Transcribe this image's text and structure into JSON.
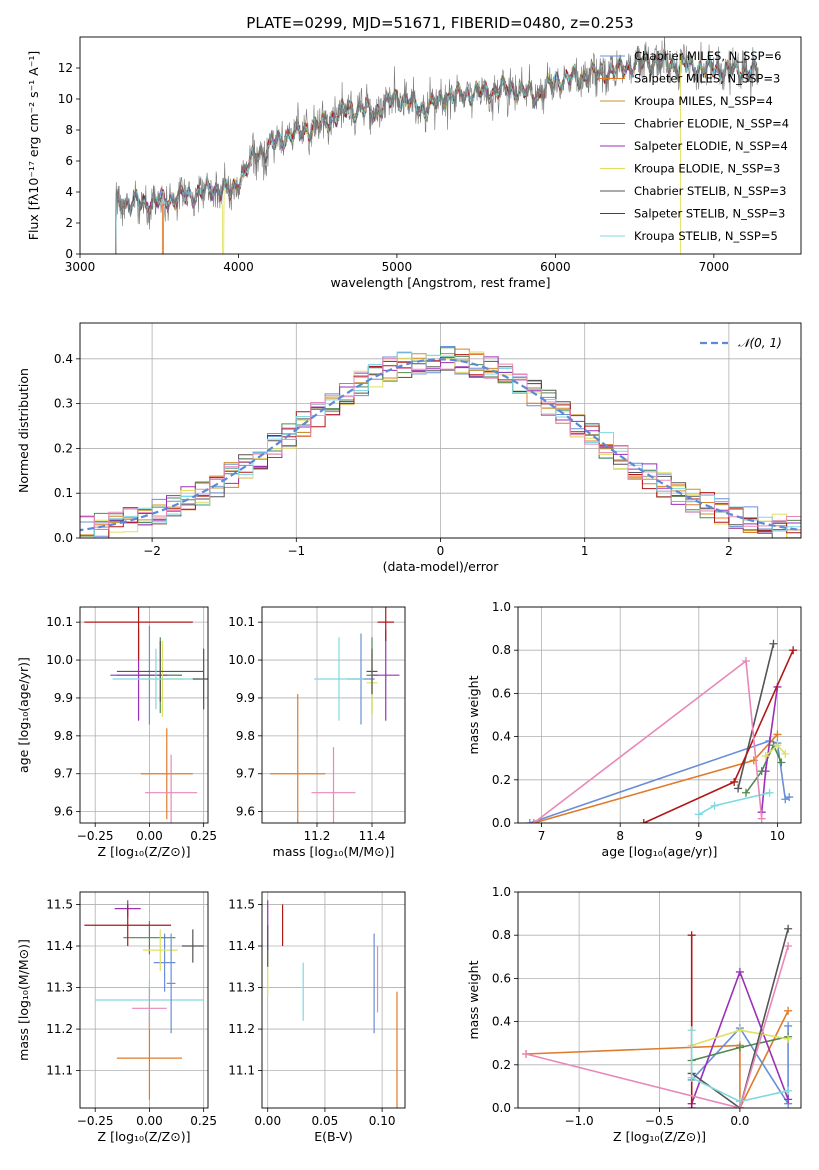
{
  "figure_title": "PLATE=0299, MJD=51671, FIBERID=0480, z=0.253",
  "colors": {
    "series": [
      "#6a8fd8",
      "#e07b2a",
      "#c9902f",
      "#4f8a4f",
      "#9b30b8",
      "#e0e060",
      "#555555",
      "#b01818",
      "#80d8e0"
    ],
    "extra_pink": "#e888b8",
    "data_gray": "#777777",
    "gaussian": "#5a8ad8",
    "grid": "#b0b0b0"
  },
  "chart_data": [
    {
      "id": "spectrum",
      "type": "line",
      "xlabel": "wavelength [Angstrom, rest frame]",
      "ylabel": "Flux [fλ10⁻¹⁷ erg cm⁻² s⁻¹ A⁻¹]",
      "xlim": [
        3000,
        7550
      ],
      "ylim": [
        0,
        14
      ],
      "xticks": [
        "3000",
        "4000",
        "5000",
        "6000",
        "7000"
      ],
      "xtick_values": [
        3000,
        4000,
        5000,
        6000,
        7000
      ],
      "yticks": [
        "0",
        "2",
        "4",
        "6",
        "8",
        "10",
        "12"
      ],
      "ytick_values": [
        0,
        2,
        4,
        6,
        8,
        10,
        12
      ],
      "grid": false,
      "legend_position": "top-right",
      "data_start": 3220,
      "data_end": 7280,
      "anchors_x": [
        3220,
        3500,
        3700,
        3900,
        3950,
        4100,
        4300,
        4500,
        4700,
        4862,
        5000,
        5175,
        5300,
        5500,
        5700,
        5890,
        6000,
        6200,
        6400,
        6563,
        6800,
        7000,
        7280
      ],
      "anchors_y": [
        3.2,
        3.4,
        3.8,
        4.3,
        3.9,
        6.3,
        7.6,
        8.2,
        9.4,
        9.2,
        10.1,
        9.3,
        10.1,
        10.4,
        10.7,
        10.2,
        11.2,
        11.5,
        11.9,
        12.4,
        12.2,
        11.9,
        11.8
      ],
      "model_start_x": [
        3220,
        3520,
        3220,
        3220,
        3220,
        3900,
        3220,
        3220,
        3220
      ],
      "legend": [
        "Chabrier MILES, N_SSP=6",
        "Salpeter MILES, N_SSP=3",
        "Kroupa MILES, N_SSP=4",
        "Chabrier ELODIE, N_SSP=4",
        "Salpeter ELODIE, N_SSP=4",
        "Kroupa ELODIE, N_SSP=3",
        "Chabrier STELIB, N_SSP=3",
        "Salpeter STELIB, N_SSP=3",
        "Kroupa STELIB, N_SSP=5"
      ]
    },
    {
      "id": "residual_hist",
      "type": "line",
      "xlabel": "(data-model)/error",
      "ylabel": "Normed distribution",
      "xlim": [
        -2.5,
        2.5
      ],
      "ylim": [
        0,
        0.48
      ],
      "xticks": [
        "−2",
        "−1",
        "0",
        "1",
        "2"
      ],
      "xtick_values": [
        -2,
        -1,
        0,
        1,
        2
      ],
      "yticks": [
        "0.0",
        "0.1",
        "0.2",
        "0.3",
        "0.4"
      ],
      "ytick_values": [
        0,
        0.1,
        0.2,
        0.3,
        0.4
      ],
      "grid": true,
      "bin_width": 0.1,
      "legend": [
        "𝒩(0, 1)"
      ],
      "legend_position": "top-right"
    },
    {
      "id": "age_vs_Z",
      "type": "scatter",
      "xlabel": "Z [log₁₀(Z/Z⊙)]",
      "ylabel": "age  [log₁₀(age/yr)]",
      "xlim": [
        -0.32,
        0.27
      ],
      "ylim": [
        9.57,
        10.14
      ],
      "xticks": [
        "−0.25",
        "0.00",
        "0.25"
      ],
      "xtick_values": [
        -0.25,
        0,
        0.25
      ],
      "yticks": [
        "9.6",
        "9.7",
        "9.8",
        "9.9",
        "10.0",
        "10.1"
      ],
      "ytick_values": [
        9.6,
        9.7,
        9.8,
        9.9,
        10.0,
        10.1
      ],
      "grid": true,
      "points": [
        {
          "x": 0.0,
          "y": 9.96,
          "xerr": 0.15,
          "yerr": 0.13,
          "c": 0
        },
        {
          "x": 0.08,
          "y": 9.7,
          "xerr": 0.12,
          "yerr": 0.12,
          "c": 1
        },
        {
          "x": 0.05,
          "y": 9.96,
          "xerr": 0.1,
          "yerr": 0.1,
          "c": 3
        },
        {
          "x": -0.05,
          "y": 9.96,
          "xerr": 0.13,
          "yerr": 0.12,
          "c": 4
        },
        {
          "x": 0.06,
          "y": 9.95,
          "xerr": 0.1,
          "yerr": 0.1,
          "c": 5
        },
        {
          "x": 0.05,
          "y": 9.97,
          "xerr": 0.2,
          "yerr": 0.08,
          "c": 6
        },
        {
          "x": -0.05,
          "y": 10.1,
          "xerr": 0.25,
          "yerr": 0.1,
          "c": 7
        },
        {
          "x": 0.03,
          "y": 9.95,
          "xerr": 0.2,
          "yerr": 0.08,
          "c": 8
        },
        {
          "x": 0.1,
          "y": 9.65,
          "xerr": 0.12,
          "yerr": 0.1,
          "c": 9
        },
        {
          "x": 0.25,
          "y": 9.95,
          "xerr": 0.05,
          "yerr": 0.08,
          "c": 6
        }
      ]
    },
    {
      "id": "age_vs_mass",
      "type": "scatter",
      "xlabel": "mass [log₁₀(M/M⊙)]",
      "ylabel": "",
      "xlim": [
        11.0,
        11.52
      ],
      "ylim": [
        9.57,
        10.14
      ],
      "xticks": [
        "11.2",
        "11.4"
      ],
      "xtick_values": [
        11.2,
        11.4
      ],
      "yticks": [
        "9.6",
        "9.7",
        "9.8",
        "9.9",
        "10.0",
        "10.1"
      ],
      "ytick_values": [
        9.6,
        9.7,
        9.8,
        9.9,
        10.0,
        10.1
      ],
      "grid": true,
      "points": [
        {
          "x": 11.36,
          "y": 9.95,
          "xerr": 0.05,
          "yerr": 0.12,
          "c": 0
        },
        {
          "x": 11.13,
          "y": 9.7,
          "xerr": 0.1,
          "yerr": 0.21,
          "c": 1
        },
        {
          "x": 11.4,
          "y": 9.96,
          "xerr": 0.02,
          "yerr": 0.1,
          "c": 3
        },
        {
          "x": 11.45,
          "y": 9.96,
          "xerr": 0.05,
          "yerr": 0.12,
          "c": 4
        },
        {
          "x": 11.4,
          "y": 9.94,
          "xerr": 0.02,
          "yerr": 0.08,
          "c": 5
        },
        {
          "x": 11.4,
          "y": 9.97,
          "xerr": 0.02,
          "yerr": 0.06,
          "c": 6
        },
        {
          "x": 11.45,
          "y": 10.1,
          "xerr": 0.03,
          "yerr": 0.05,
          "c": 7
        },
        {
          "x": 11.28,
          "y": 9.95,
          "xerr": 0.09,
          "yerr": 0.11,
          "c": 8
        },
        {
          "x": 11.26,
          "y": 9.65,
          "xerr": 0.08,
          "yerr": 0.12,
          "c": 9
        }
      ]
    },
    {
      "id": "weight_vs_age",
      "type": "line",
      "xlabel": "age  [log₁₀(age/yr)]",
      "ylabel": "mass weight",
      "xlim": [
        6.7,
        10.3
      ],
      "ylim": [
        0,
        1.0
      ],
      "xticks": [
        "7",
        "8",
        "9",
        "10"
      ],
      "xtick_values": [
        7,
        8,
        9,
        10
      ],
      "yticks": [
        "0.0",
        "0.2",
        "0.4",
        "0.6",
        "0.8",
        "1.0"
      ],
      "ytick_values": [
        0,
        0.2,
        0.4,
        0.6,
        0.8,
        1.0
      ],
      "grid": true,
      "series": [
        {
          "c": 0,
          "x": [
            6.85,
            9.9,
            10.0,
            10.1,
            10.15
          ],
          "y": [
            0.0,
            0.38,
            0.37,
            0.11,
            0.12
          ]
        },
        {
          "c": 1,
          "x": [
            6.9,
            9.7,
            10.0
          ],
          "y": [
            0.0,
            0.29,
            0.41
          ]
        },
        {
          "c": 3,
          "x": [
            9.6,
            9.8,
            9.95,
            10.05
          ],
          "y": [
            0.14,
            0.24,
            0.36,
            0.28
          ]
        },
        {
          "c": 4,
          "x": [
            9.8,
            9.85,
            10.0
          ],
          "y": [
            0.05,
            0.24,
            0.63
          ]
        },
        {
          "c": 5,
          "x": [
            9.85,
            10.0,
            10.1
          ],
          "y": [
            0.31,
            0.36,
            0.32
          ]
        },
        {
          "c": 6,
          "x": [
            9.5,
            9.95
          ],
          "y": [
            0.16,
            0.83
          ]
        },
        {
          "c": 7,
          "x": [
            8.3,
            9.45,
            10.2
          ],
          "y": [
            0.0,
            0.19,
            0.8
          ]
        },
        {
          "c": 8,
          "x": [
            9.0,
            9.2,
            9.9
          ],
          "y": [
            0.04,
            0.08,
            0.14
          ]
        },
        {
          "c": 9,
          "x": [
            6.9,
            9.6,
            9.8
          ],
          "y": [
            0.0,
            0.75,
            0.02
          ]
        }
      ]
    },
    {
      "id": "mass_vs_Z",
      "type": "scatter",
      "xlabel": "Z [log₁₀(Z/Z⊙)]",
      "ylabel": "mass [log₁₀(M/M⊙)]",
      "xlim": [
        -0.32,
        0.27
      ],
      "ylim": [
        11.01,
        11.53
      ],
      "xticks": [
        "−0.25",
        "0.00",
        "0.25"
      ],
      "xtick_values": [
        -0.25,
        0,
        0.25
      ],
      "yticks": [
        "11.1",
        "11.2",
        "11.3",
        "11.4",
        "11.5"
      ],
      "ytick_values": [
        11.1,
        11.2,
        11.3,
        11.4,
        11.5
      ],
      "grid": true,
      "points": [
        {
          "x": 0.07,
          "y": 11.36,
          "xerr": 0.05,
          "yerr": 0.07,
          "c": 0
        },
        {
          "x": 0.0,
          "y": 11.13,
          "xerr": 0.15,
          "yerr": 0.1,
          "c": 1
        },
        {
          "x": 0.0,
          "y": 11.42,
          "xerr": 0.12,
          "yerr": 0.04,
          "c": 3
        },
        {
          "x": -0.1,
          "y": 11.49,
          "xerr": 0.06,
          "yerr": 0.02,
          "c": 4
        },
        {
          "x": 0.05,
          "y": 11.39,
          "xerr": 0.08,
          "yerr": 0.05,
          "c": 5
        },
        {
          "x": 0.2,
          "y": 11.4,
          "xerr": 0.05,
          "yerr": 0.04,
          "c": 6
        },
        {
          "x": -0.1,
          "y": 11.45,
          "xerr": 0.2,
          "yerr": 0.05,
          "c": 7
        },
        {
          "x": 0.0,
          "y": 11.27,
          "xerr": 0.25,
          "yerr": 0.05,
          "c": 8
        },
        {
          "x": 0.0,
          "y": 11.25,
          "xerr": 0.08,
          "yerr": 0.05,
          "c": 9
        },
        {
          "x": 0.1,
          "y": 11.31,
          "xerr": 0.02,
          "yerr": 0.12,
          "c": 0
        }
      ]
    },
    {
      "id": "mass_vs_EBV",
      "type": "scatter",
      "xlabel": "E(B-V)",
      "ylabel": "",
      "xlim": [
        -0.005,
        0.12
      ],
      "ylim": [
        11.01,
        11.53
      ],
      "xticks": [
        "0.00",
        "0.05",
        "0.10"
      ],
      "xtick_values": [
        0,
        0.05,
        0.1
      ],
      "yticks": [
        "11.1",
        "11.2",
        "11.3",
        "11.4",
        "11.5"
      ],
      "ytick_values": [
        11.1,
        11.2,
        11.3,
        11.4,
        11.5
      ],
      "grid": true,
      "points": [
        {
          "x": 0.0,
          "y": 11.45,
          "xerr": 0,
          "yerr": 0.06,
          "c": 4
        },
        {
          "x": 0.0,
          "y": 11.33,
          "xerr": 0,
          "yerr": 0.05,
          "c": 5
        },
        {
          "x": 0.0,
          "y": 11.4,
          "xerr": 0,
          "yerr": 0.05,
          "c": 6
        },
        {
          "x": 0.013,
          "y": 11.45,
          "xerr": 0,
          "yerr": 0.05,
          "c": 7
        },
        {
          "x": 0.031,
          "y": 11.29,
          "xerr": 0,
          "yerr": 0.07,
          "c": 8
        },
        {
          "x": 0.093,
          "y": 11.31,
          "xerr": 0,
          "yerr": 0.12,
          "c": 0
        },
        {
          "x": 0.096,
          "y": 11.32,
          "xerr": 0,
          "yerr": 0.08,
          "c": 9
        },
        {
          "x": 0.113,
          "y": 11.15,
          "xerr": 0,
          "yerr": 0.14,
          "c": 1
        }
      ]
    },
    {
      "id": "weight_vs_Z",
      "type": "line",
      "xlabel": "Z [log₁₀(Z/Z⊙)]",
      "ylabel": "mass weight",
      "xlim": [
        -1.38,
        0.38
      ],
      "ylim": [
        0,
        1.0
      ],
      "xticks": [
        "−1.0",
        "−0.5",
        "0.0"
      ],
      "xtick_values": [
        -1.0,
        -0.5,
        0.0
      ],
      "yticks": [
        "0.0",
        "0.2",
        "0.4",
        "0.6",
        "0.8",
        "1.0"
      ],
      "ytick_values": [
        0,
        0.2,
        0.4,
        0.6,
        0.8,
        1.0
      ],
      "grid": true,
      "series": [
        {
          "c": 1,
          "x": [
            -1.33,
            0.0,
            0.0,
            0.3
          ],
          "y": [
            0.25,
            0.29,
            0.0,
            0.45
          ]
        },
        {
          "c": 0,
          "x": [
            -0.3,
            0.0,
            0.3,
            0.3
          ],
          "y": [
            0.13,
            0.37,
            0.02,
            0.38
          ]
        },
        {
          "c": 3,
          "x": [
            -0.3,
            0.0,
            0.3
          ],
          "y": [
            0.22,
            0.28,
            0.33
          ]
        },
        {
          "c": 4,
          "x": [
            -0.3,
            0.0,
            0.3
          ],
          "y": [
            0.02,
            0.63,
            0.04
          ]
        },
        {
          "c": 5,
          "x": [
            -0.3,
            0.0,
            0.3
          ],
          "y": [
            0.29,
            0.36,
            0.32
          ]
        },
        {
          "c": 6,
          "x": [
            -0.3,
            0.0,
            0.3
          ],
          "y": [
            0.16,
            0.0,
            0.83
          ]
        },
        {
          "c": 7,
          "x": [
            -0.3,
            -0.3
          ],
          "y": [
            0.0,
            0.8
          ]
        },
        {
          "c": 8,
          "x": [
            -0.3,
            -0.3,
            0.0,
            0.3
          ],
          "y": [
            0.36,
            0.14,
            0.03,
            0.08
          ]
        },
        {
          "c": 9,
          "x": [
            -1.33,
            0.0,
            0.3
          ],
          "y": [
            0.25,
            0.0,
            0.75
          ]
        }
      ]
    }
  ]
}
